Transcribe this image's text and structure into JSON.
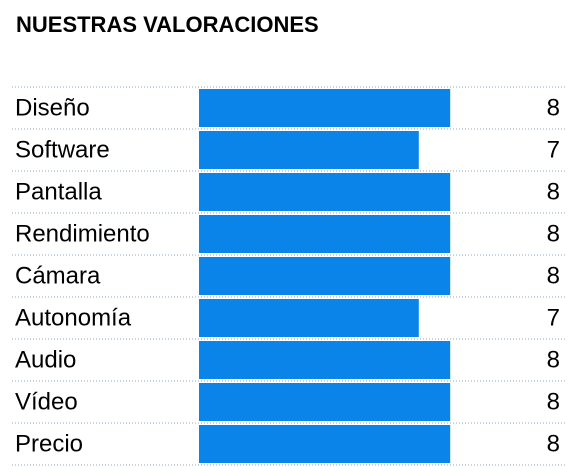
{
  "chart_data": {
    "type": "bar",
    "orientation": "horizontal",
    "title": "NUESTRAS VALORACIONES",
    "categories": [
      "Diseño",
      "Software",
      "Pantalla",
      "Rendimiento",
      "Cámara",
      "Autonomía",
      "Audio",
      "Vídeo",
      "Precio"
    ],
    "values": [
      8,
      7,
      8,
      8,
      8,
      7,
      8,
      8,
      8
    ],
    "color": "#0a84e8",
    "xlim": [
      0,
      10
    ]
  }
}
